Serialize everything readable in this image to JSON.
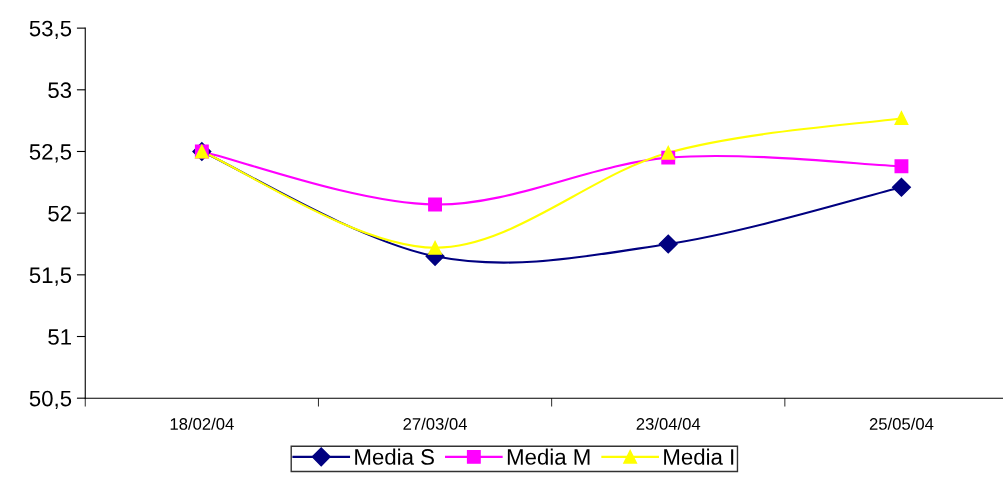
{
  "chart_data": {
    "type": "line",
    "categories": [
      "18/02/04",
      "27/03/04",
      "23/04/04",
      "25/05/04"
    ],
    "series": [
      {
        "name": "Media S",
        "color": "#000080",
        "marker": "diamond",
        "values": [
          52.5,
          51.65,
          51.75,
          52.21
        ]
      },
      {
        "name": "Media M",
        "color": "#ff00ff",
        "marker": "square",
        "values": [
          52.5,
          52.07,
          52.45,
          52.38
        ]
      },
      {
        "name": "Media I",
        "color": "#ffff00",
        "marker": "triangle",
        "values": [
          52.5,
          51.72,
          52.49,
          52.77
        ]
      }
    ],
    "ylim": [
      50.5,
      53.5
    ],
    "yticks": [
      {
        "value": 50.5,
        "label": "50,5"
      },
      {
        "value": 51,
        "label": "51"
      },
      {
        "value": 51.5,
        "label": "51,5"
      },
      {
        "value": 52,
        "label": "52"
      },
      {
        "value": 52.5,
        "label": "52,5"
      },
      {
        "value": 53,
        "label": "53"
      },
      {
        "value": 53.5,
        "label": "53,5"
      }
    ],
    "grid": false,
    "legend": "bottom",
    "line_style": "solid"
  }
}
